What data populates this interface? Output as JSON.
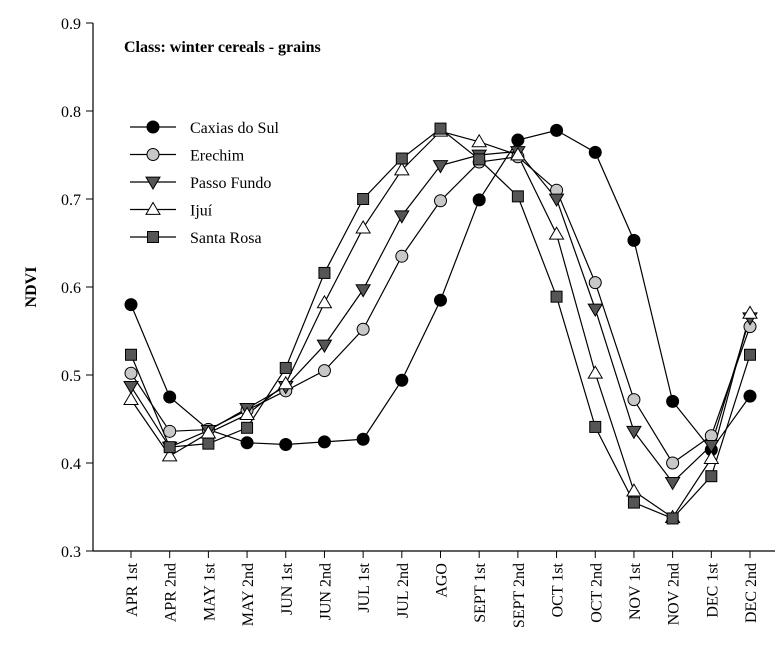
{
  "chart_data": {
    "type": "line",
    "annotation": "Class: winter cereals - grains",
    "y_label": "NDVI",
    "categories": [
      "APR 1st",
      "APR 2nd",
      "MAY 1st",
      "MAY 2nd",
      "JUN 1st",
      "JUN 2nd",
      "JUL 1st",
      "JUL 2nd",
      "AGO",
      "SEPT 1st",
      "SEPT 2nd",
      "OCT 1st",
      "OCT 2nd",
      "NOV 1st",
      "NOV 2nd",
      "DEC 1st",
      "DEC 2nd"
    ],
    "series": [
      {
        "name": "Caxias do Sul",
        "marker": "circle",
        "color": "#000000",
        "values": [
          0.58,
          0.475,
          0.438,
          0.423,
          0.421,
          0.424,
          0.427,
          0.494,
          0.585,
          0.699,
          0.767,
          0.778,
          0.753,
          0.653,
          0.47,
          0.415,
          0.476
        ]
      },
      {
        "name": "Erechim",
        "marker": "circle",
        "color": "#c8c8c8",
        "values": [
          0.502,
          0.436,
          0.438,
          0.46,
          0.482,
          0.505,
          0.552,
          0.635,
          0.698,
          0.742,
          0.748,
          0.71,
          0.605,
          0.472,
          0.4,
          0.431,
          0.555
        ]
      },
      {
        "name": "Passo Fundo",
        "marker": "triangle-down",
        "color": "#555555",
        "values": [
          0.487,
          0.418,
          0.437,
          0.462,
          0.487,
          0.534,
          0.597,
          0.681,
          0.738,
          0.75,
          0.754,
          0.7,
          0.575,
          0.436,
          0.378,
          0.42,
          0.565
        ]
      },
      {
        "name": "Ijuí",
        "marker": "triangle-up",
        "color": "#ffffff",
        "values": [
          0.472,
          0.408,
          0.434,
          0.455,
          0.49,
          0.582,
          0.667,
          0.733,
          0.777,
          0.765,
          0.75,
          0.66,
          0.502,
          0.368,
          0.338,
          0.405,
          0.57
        ]
      },
      {
        "name": "Santa Rosa",
        "marker": "square",
        "color": "#555555",
        "values": [
          0.523,
          0.418,
          0.422,
          0.44,
          0.508,
          0.616,
          0.7,
          0.746,
          0.78,
          0.745,
          0.703,
          0.589,
          0.441,
          0.355,
          0.337,
          0.385,
          0.523
        ]
      }
    ],
    "ylim": [
      0.3,
      0.9
    ],
    "yticks": [
      0.3,
      0.4,
      0.5,
      0.6,
      0.7,
      0.8,
      0.9
    ],
    "legend": "upper left"
  }
}
